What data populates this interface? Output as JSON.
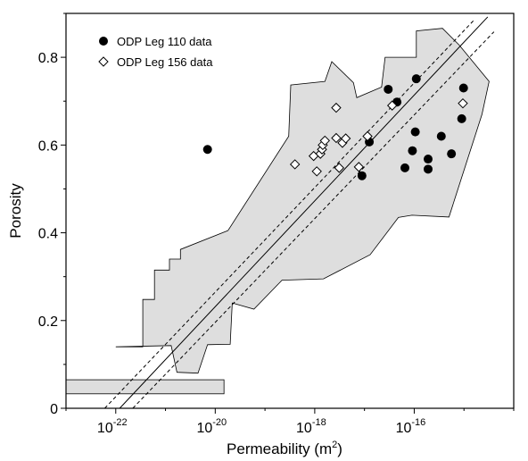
{
  "chart_data": {
    "type": "scatter",
    "xlabel": {
      "base": "Permeability (m",
      "sup": "2",
      "tail": ")"
    },
    "ylabel": "Porosity",
    "x_scale": "log",
    "xlim": [
      1e-23,
      1e-14
    ],
    "ylim": [
      0,
      0.9
    ],
    "x_ticks": [
      {
        "value": 1e-22,
        "base": "10",
        "exp": "-22"
      },
      {
        "value": 1e-20,
        "base": "10",
        "exp": "-20"
      },
      {
        "value": 1e-18,
        "base": "10",
        "exp": "-18"
      },
      {
        "value": 1e-16,
        "base": "10",
        "exp": "-16"
      }
    ],
    "y_ticks": [
      {
        "value": 0,
        "label": "0"
      },
      {
        "value": 0.2,
        "label": "0.2"
      },
      {
        "value": 0.4,
        "label": "0.4"
      },
      {
        "value": 0.6,
        "label": "0.6"
      },
      {
        "value": 0.8,
        "label": "0.8"
      }
    ],
    "grid": false,
    "legend_position": "top-left",
    "series": [
      {
        "name": "ODP Leg 110 data",
        "marker": "filled-circle",
        "color": "#000000",
        "points": [
          {
            "x": 7e-21,
            "y": 0.59
          },
          {
            "x": 8.9e-18,
            "y": 0.53
          },
          {
            "x": 1.25e-17,
            "y": 0.607
          },
          {
            "x": 3e-17,
            "y": 0.727
          },
          {
            "x": 4.5e-17,
            "y": 0.698
          },
          {
            "x": 1.1e-16,
            "y": 0.751
          },
          {
            "x": 6.5e-17,
            "y": 0.548
          },
          {
            "x": 9.2e-17,
            "y": 0.587
          },
          {
            "x": 1.05e-16,
            "y": 0.63
          },
          {
            "x": 1.9e-16,
            "y": 0.568
          },
          {
            "x": 1.9e-16,
            "y": 0.545
          },
          {
            "x": 3.5e-16,
            "y": 0.62
          },
          {
            "x": 5.6e-16,
            "y": 0.58
          },
          {
            "x": 9e-16,
            "y": 0.66
          },
          {
            "x": 9.8e-16,
            "y": 0.73
          }
        ]
      },
      {
        "name": "ODP Leg 156 data",
        "marker": "open-diamond",
        "color": "#000000",
        "points": [
          {
            "x": 4e-19,
            "y": 0.556
          },
          {
            "x": 9.5e-19,
            "y": 0.575
          },
          {
            "x": 1.1e-18,
            "y": 0.54
          },
          {
            "x": 1.3e-18,
            "y": 0.58
          },
          {
            "x": 1.4e-18,
            "y": 0.59
          },
          {
            "x": 1.45e-18,
            "y": 0.6
          },
          {
            "x": 1.6e-18,
            "y": 0.61
          },
          {
            "x": 2.7e-18,
            "y": 0.685
          },
          {
            "x": 2.7e-18,
            "y": 0.616
          },
          {
            "x": 3.1e-18,
            "y": 0.548
          },
          {
            "x": 3.6e-18,
            "y": 0.605
          },
          {
            "x": 4.2e-18,
            "y": 0.615
          },
          {
            "x": 7.7e-18,
            "y": 0.55
          },
          {
            "x": 1.15e-17,
            "y": 0.62
          },
          {
            "x": 3.6e-17,
            "y": 0.69
          },
          {
            "x": 9.5e-16,
            "y": 0.695
          }
        ]
      }
    ],
    "shaded_region": {
      "fill": "#dedede",
      "vertices": [
        [
          1e-22,
          0.14
        ],
        [
          3.5e-22,
          0.14
        ],
        [
          3.5e-22,
          0.248
        ],
        [
          6e-22,
          0.248
        ],
        [
          6e-22,
          0.315
        ],
        [
          1.2e-21,
          0.315
        ],
        [
          1.2e-21,
          0.34
        ],
        [
          2e-21,
          0.34
        ],
        [
          2e-21,
          0.362
        ],
        [
          1.8e-20,
          0.405
        ],
        [
          3e-19,
          0.62
        ],
        [
          3.3e-19,
          0.737
        ],
        [
          1.6e-18,
          0.745
        ],
        [
          2.2e-18,
          0.79
        ],
        [
          6e-18,
          0.742
        ],
        [
          7e-18,
          0.708
        ],
        [
          2.2e-17,
          0.732
        ],
        [
          2.6e-17,
          0.8
        ],
        [
          1.1e-16,
          0.8
        ],
        [
          1.1e-16,
          0.86
        ],
        [
          3.7e-16,
          0.866
        ],
        [
          8e-16,
          0.828
        ],
        [
          3.2e-15,
          0.745
        ],
        [
          2.3e-15,
          0.67
        ],
        [
          5e-16,
          0.436
        ],
        [
          9e-17,
          0.44
        ],
        [
          4.8e-17,
          0.435
        ],
        [
          1.3e-17,
          0.35
        ],
        [
          1.5e-18,
          0.295
        ],
        [
          2.2e-19,
          0.292
        ],
        [
          6e-20,
          0.226
        ],
        [
          2.2e-20,
          0.24
        ],
        [
          2e-20,
          0.146
        ],
        [
          7e-21,
          0.145
        ],
        [
          4.5e-21,
          0.08
        ],
        [
          1.7e-21,
          0.082
        ],
        [
          1.3e-21,
          0.143
        ]
      ]
    },
    "shaded_box": {
      "fill": "#dedede",
      "x_range": [
        1e-23,
        1.5e-20
      ],
      "y_range": [
        0.033,
        0.065
      ]
    },
    "lines": [
      {
        "style": "solid",
        "points": [
          [
            1.2e-22,
            0
          ],
          [
            3e-15,
            0.892
          ]
        ]
      },
      {
        "style": "dashed",
        "points": [
          [
            6e-23,
            0
          ],
          [
            1.6e-15,
            0.885
          ]
        ]
      },
      {
        "style": "dashed",
        "points": [
          [
            2.2e-22,
            0
          ],
          [
            4e-15,
            0.858
          ]
        ]
      }
    ]
  }
}
